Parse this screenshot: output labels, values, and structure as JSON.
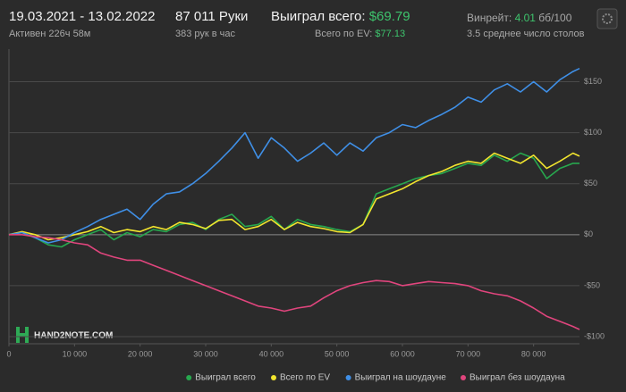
{
  "header": {
    "dates": "19.03.2021 - 13.02.2022",
    "active": "Активен 226ч 58м",
    "hands": "87 011 Руки",
    "hands_per_hour": "383 рук в час",
    "won_label": "Выиграл всего:",
    "won_value": "$69.79",
    "ev_label": "Всего по EV:",
    "ev_value": "$77.13",
    "winrate_label": "Винрейт:",
    "winrate_value": "4.01",
    "winrate_unit": "бб/100",
    "tables": "3.5 среднее число столов"
  },
  "logo": "HAND2NOTE.COM",
  "chart_data": {
    "type": "line",
    "x": [
      0,
      2000,
      4000,
      6000,
      8000,
      10000,
      12000,
      14000,
      16000,
      18000,
      20000,
      22000,
      24000,
      26000,
      28000,
      30000,
      32000,
      34000,
      36000,
      38000,
      40000,
      42000,
      44000,
      46000,
      48000,
      50000,
      52000,
      54000,
      56000,
      58000,
      60000,
      62000,
      64000,
      66000,
      68000,
      70000,
      72000,
      74000,
      76000,
      78000,
      80000,
      82000,
      84000,
      86000,
      87000
    ],
    "series": [
      {
        "name": "Выиграл всего",
        "color": "#27a84e",
        "values": [
          0,
          2,
          -3,
          -10,
          -12,
          -5,
          0,
          5,
          -5,
          2,
          -2,
          5,
          3,
          10,
          12,
          5,
          15,
          20,
          8,
          10,
          18,
          5,
          15,
          10,
          8,
          5,
          3,
          10,
          40,
          45,
          50,
          55,
          58,
          60,
          65,
          70,
          68,
          78,
          72,
          80,
          75,
          55,
          65,
          70,
          70
        ]
      },
      {
        "name": "Всего по EV",
        "color": "#f2e52e",
        "values": [
          0,
          3,
          0,
          -5,
          -3,
          0,
          3,
          8,
          2,
          5,
          3,
          8,
          5,
          12,
          10,
          6,
          14,
          15,
          5,
          8,
          15,
          5,
          12,
          8,
          6,
          3,
          2,
          10,
          35,
          40,
          45,
          52,
          58,
          62,
          68,
          72,
          70,
          80,
          75,
          70,
          78,
          65,
          72,
          80,
          77
        ]
      },
      {
        "name": "Выиграл на шоудауне",
        "color": "#3f8fe6",
        "values": [
          0,
          2,
          -3,
          -8,
          -5,
          2,
          8,
          15,
          20,
          25,
          15,
          30,
          40,
          42,
          50,
          60,
          72,
          85,
          100,
          75,
          95,
          85,
          72,
          80,
          90,
          78,
          90,
          82,
          95,
          100,
          108,
          105,
          112,
          118,
          125,
          135,
          130,
          142,
          148,
          140,
          150,
          140,
          152,
          160,
          163
        ]
      },
      {
        "name": "Выиграл без шоудауна",
        "color": "#e0457d",
        "values": [
          0,
          0,
          -2,
          -3,
          -5,
          -8,
          -10,
          -18,
          -22,
          -25,
          -25,
          -30,
          -35,
          -40,
          -45,
          -50,
          -55,
          -60,
          -65,
          -70,
          -72,
          -75,
          -72,
          -70,
          -62,
          -55,
          -50,
          -47,
          -45,
          -46,
          -50,
          -48,
          -46,
          -47,
          -48,
          -50,
          -55,
          -58,
          -60,
          -65,
          -72,
          -80,
          -85,
          -90,
          -93
        ]
      }
    ],
    "xlim": [
      0,
      87000
    ],
    "ylim": [
      -107,
      182
    ],
    "xticks": [
      0,
      {
        "value": 10000,
        "label": "10 000"
      },
      {
        "value": 20000,
        "label": "20 000"
      },
      {
        "value": 30000,
        "label": "30 000"
      },
      {
        "value": 40000,
        "label": "40 000"
      },
      {
        "value": 50000,
        "label": "50 000"
      },
      {
        "value": 60000,
        "label": "60 000"
      },
      {
        "value": 70000,
        "label": "70 000"
      },
      {
        "value": 80000,
        "label": "80 000"
      }
    ],
    "yticks": [
      {
        "value": -100,
        "label": "-$100"
      },
      {
        "value": -50,
        "label": "-$50"
      },
      {
        "value": 0,
        "label": "$0"
      },
      {
        "value": 50,
        "label": "$50"
      },
      {
        "value": 100,
        "label": "$100"
      },
      {
        "value": 150,
        "label": "$150"
      }
    ],
    "grid": true,
    "legend": "bottom-right"
  }
}
